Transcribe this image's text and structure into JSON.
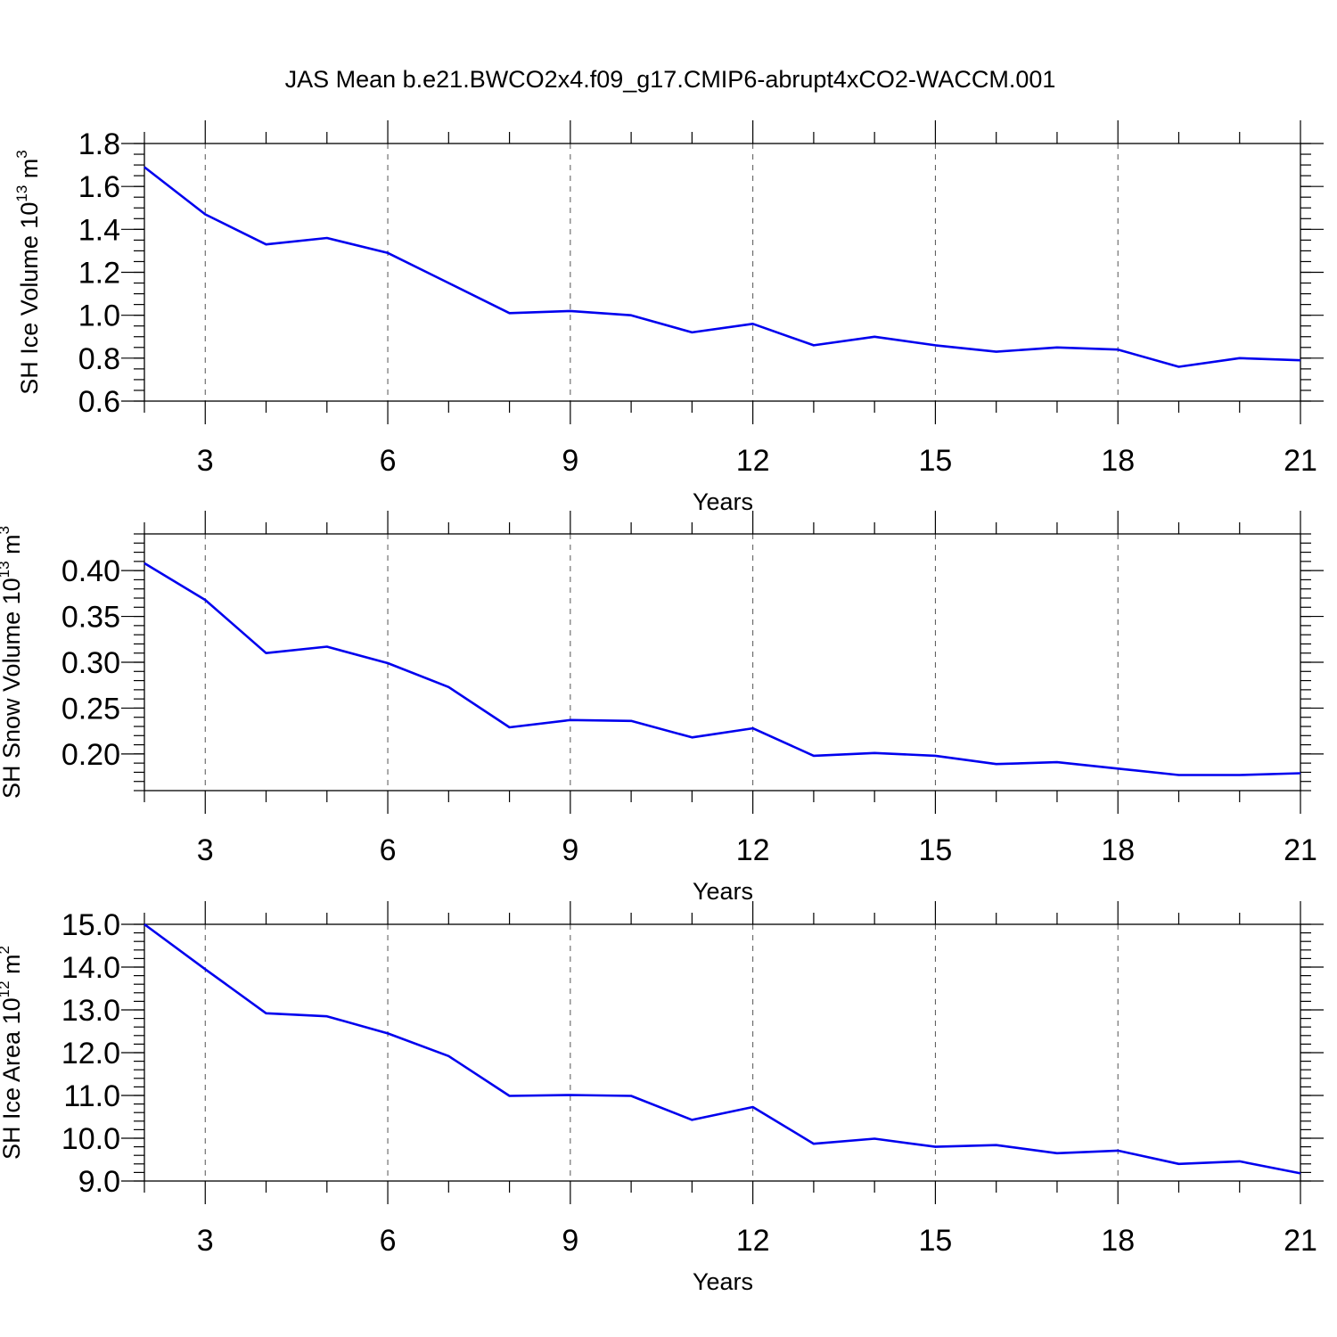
{
  "title": "JAS Mean b.e21.BWCO2x4.f09_g17.CMIP6-abrupt4xCO2-WACCM.001",
  "line_color": "#0000ee",
  "chart_data": [
    {
      "type": "line",
      "ylabel": {
        "main": "SH Ice Volume 10",
        "sup": "13",
        "unit": " m",
        "unit_sup": "3"
      },
      "xlabel": "Years",
      "xlim": [
        2,
        21
      ],
      "ylim": [
        0.6,
        1.8
      ],
      "x_ticks": [
        3,
        6,
        9,
        12,
        15,
        18,
        21
      ],
      "y_ticks": [
        0.6,
        0.8,
        1.0,
        1.2,
        1.4,
        1.6,
        1.8
      ],
      "y_tick_labels": [
        "0.6",
        "0.8",
        "1.0",
        "1.2",
        "1.4",
        "1.6",
        "1.8"
      ],
      "y_minor_step": 0.05,
      "grid_x": true,
      "x": [
        2,
        3,
        4,
        5,
        6,
        7,
        8,
        9,
        10,
        11,
        12,
        13,
        14,
        15,
        16,
        17,
        18,
        19,
        20,
        21
      ],
      "values": [
        1.69,
        1.47,
        1.33,
        1.36,
        1.29,
        1.15,
        1.01,
        1.02,
        1.0,
        0.92,
        0.96,
        0.86,
        0.9,
        0.86,
        0.83,
        0.85,
        0.84,
        0.76,
        0.8,
        0.79
      ]
    },
    {
      "type": "line",
      "ylabel": {
        "main": "SH Snow Volume 10",
        "sup": "13",
        "unit": " m",
        "unit_sup": "3"
      },
      "xlabel": "Years",
      "xlim": [
        2,
        21
      ],
      "ylim": [
        0.16,
        0.44
      ],
      "x_ticks": [
        3,
        6,
        9,
        12,
        15,
        18,
        21
      ],
      "y_ticks": [
        0.2,
        0.25,
        0.3,
        0.35,
        0.4
      ],
      "y_tick_labels": [
        "0.20",
        "0.25",
        "0.30",
        "0.35",
        "0.40"
      ],
      "y_minor_step": 0.01,
      "grid_x": true,
      "x": [
        2,
        3,
        4,
        5,
        6,
        7,
        8,
        9,
        10,
        11,
        12,
        13,
        14,
        15,
        16,
        17,
        18,
        19,
        20,
        21
      ],
      "values": [
        0.408,
        0.368,
        0.31,
        0.317,
        0.299,
        0.273,
        0.229,
        0.237,
        0.236,
        0.218,
        0.228,
        0.198,
        0.201,
        0.198,
        0.189,
        0.191,
        0.184,
        0.177,
        0.177,
        0.179
      ]
    },
    {
      "type": "line",
      "ylabel": {
        "main": "SH Ice Area 10",
        "sup": "12",
        "unit": " m",
        "unit_sup": "2"
      },
      "xlabel": "Years",
      "xlim": [
        2,
        21
      ],
      "ylim": [
        9.0,
        15.0
      ],
      "x_ticks": [
        3,
        6,
        9,
        12,
        15,
        18,
        21
      ],
      "y_ticks": [
        9,
        10,
        11,
        12,
        13,
        14,
        15
      ],
      "y_tick_labels": [
        "9.0",
        "10.0",
        "11.0",
        "12.0",
        "13.0",
        "14.0",
        "15.0"
      ],
      "y_minor_step": 0.2,
      "grid_x": true,
      "x": [
        2,
        3,
        4,
        5,
        6,
        7,
        8,
        9,
        10,
        11,
        12,
        13,
        14,
        15,
        16,
        17,
        18,
        19,
        20,
        21
      ],
      "values": [
        15.0,
        13.95,
        12.92,
        12.85,
        12.45,
        11.92,
        10.99,
        11.01,
        10.99,
        10.43,
        10.73,
        9.87,
        9.99,
        9.8,
        9.84,
        9.65,
        9.71,
        9.4,
        9.46,
        9.18
      ]
    }
  ]
}
